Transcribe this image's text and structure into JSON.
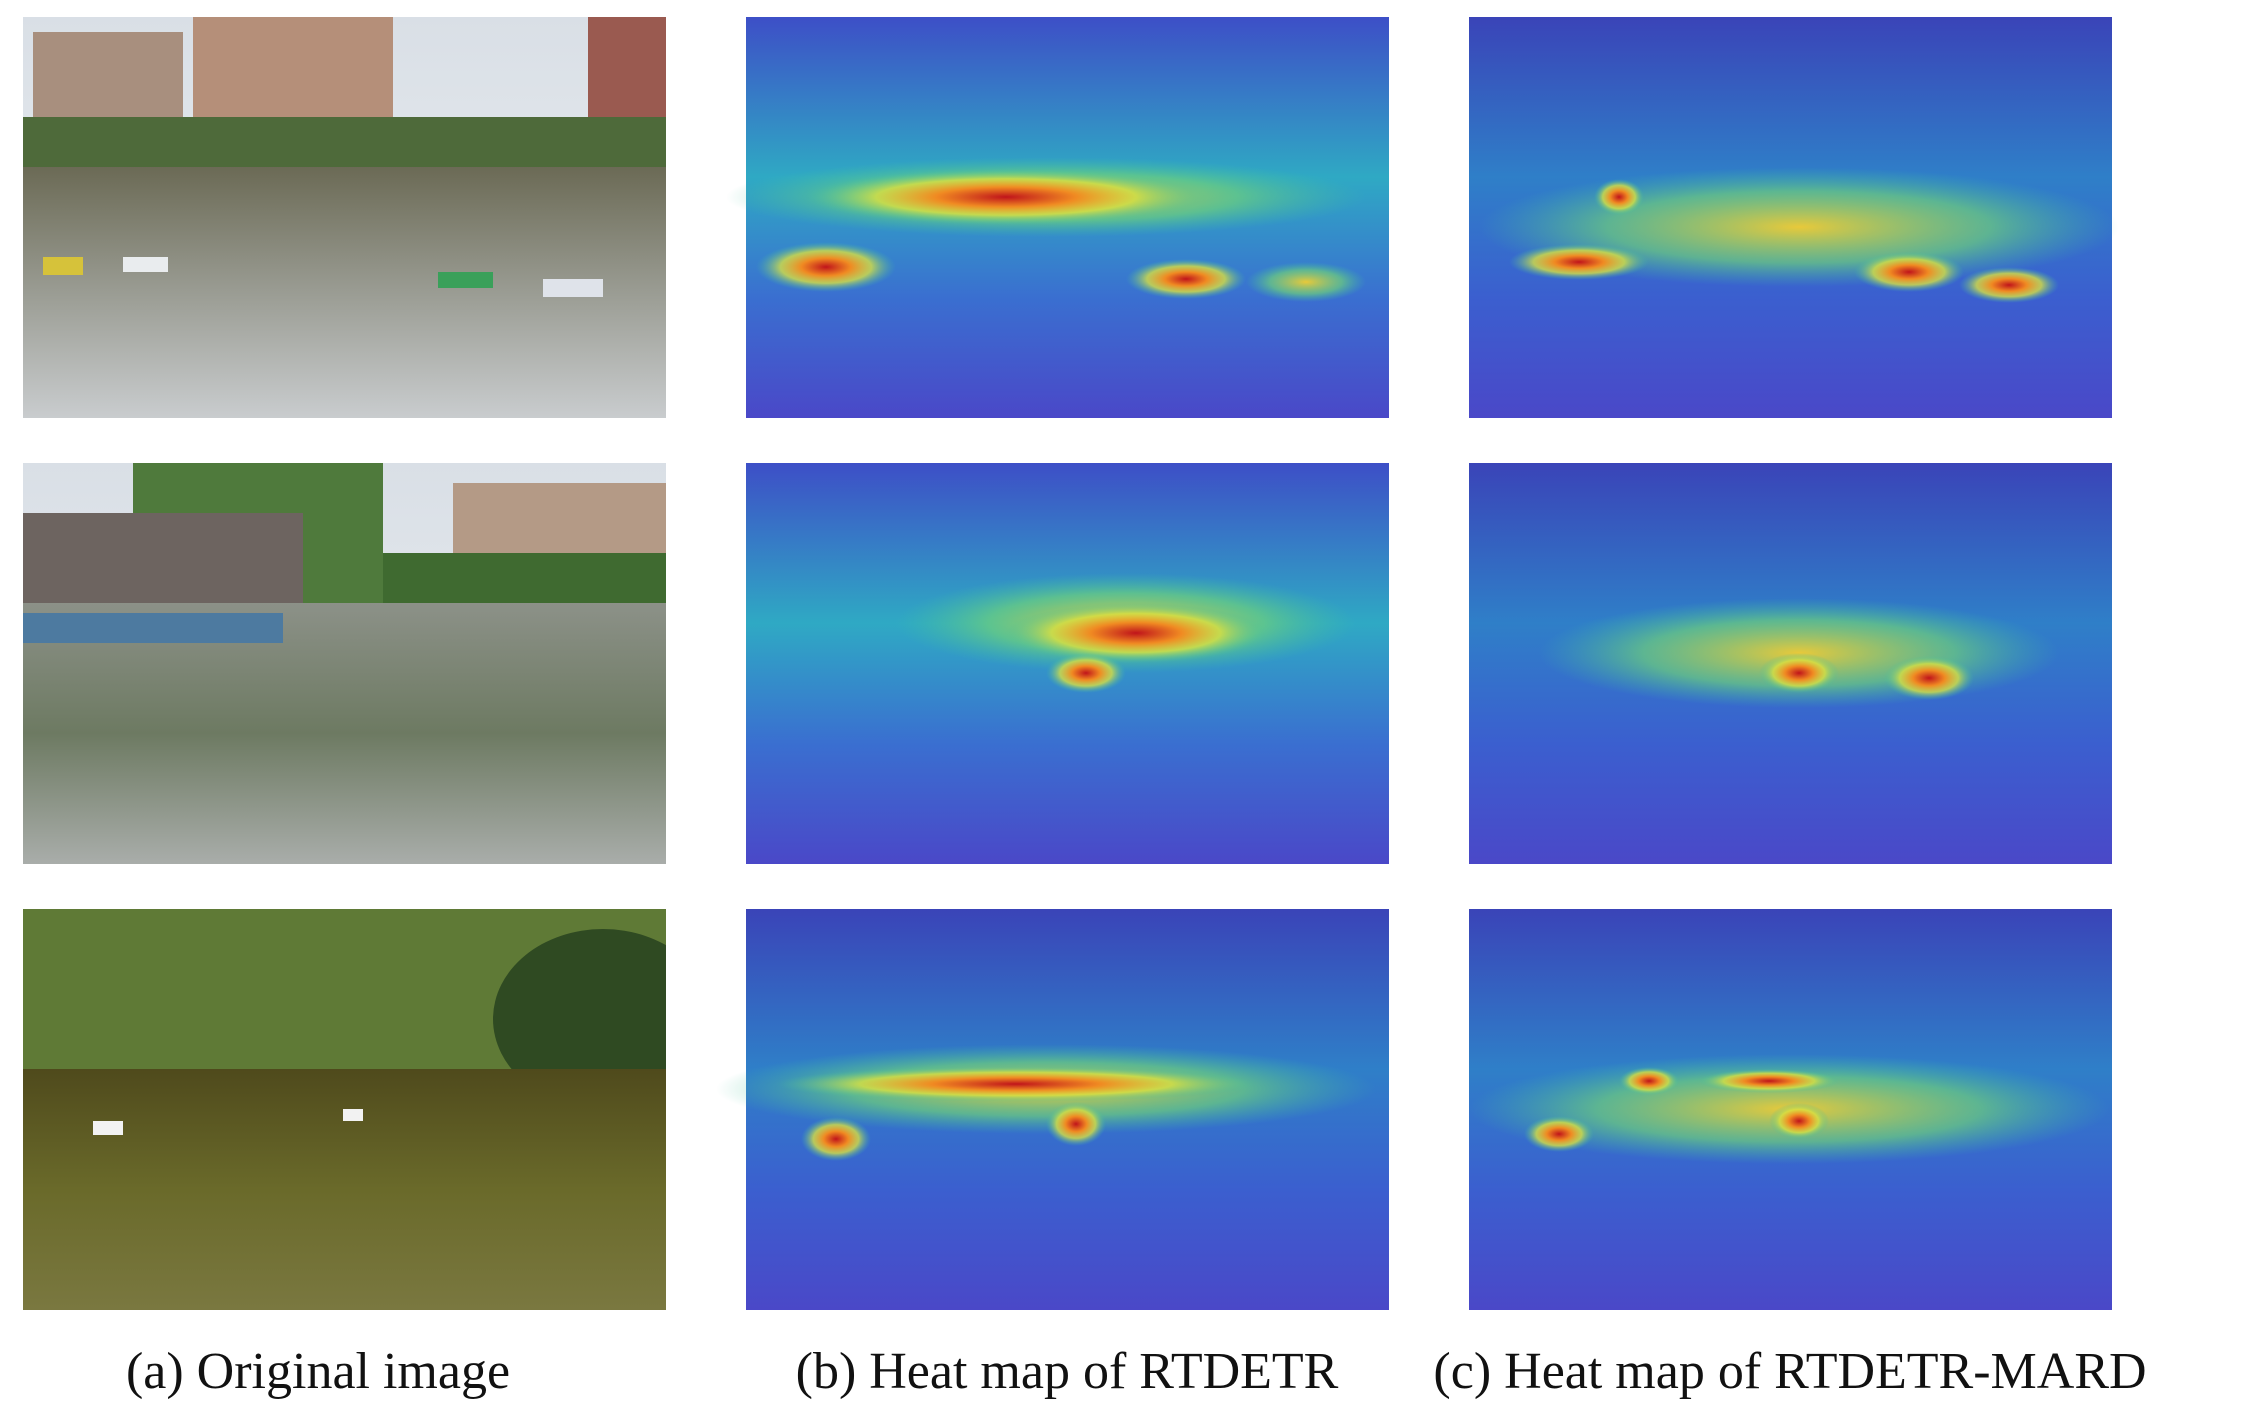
{
  "captions": [
    "(a) Original image",
    "(b) Heat map of RTDETR",
    "(c) Heat map of RTDETR-MARD"
  ]
}
